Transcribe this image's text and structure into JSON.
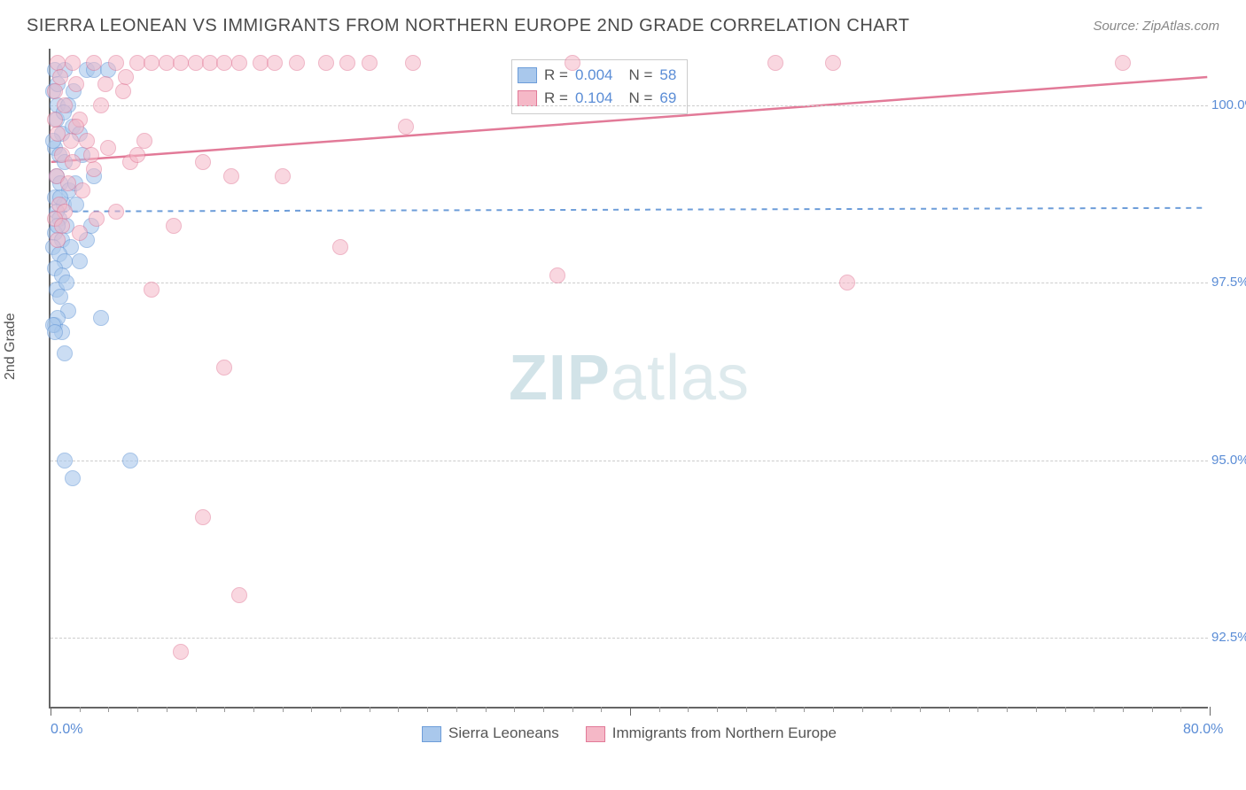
{
  "title": "SIERRA LEONEAN VS IMMIGRANTS FROM NORTHERN EUROPE 2ND GRADE CORRELATION CHART",
  "source": "Source: ZipAtlas.com",
  "ylabel": "2nd Grade",
  "watermark_bold": "ZIP",
  "watermark_light": "atlas",
  "chart": {
    "type": "scatter",
    "xlim": [
      0,
      80
    ],
    "ylim": [
      91.5,
      100.8
    ],
    "yticks": [
      {
        "v": 100.0,
        "label": "100.0%"
      },
      {
        "v": 97.5,
        "label": "97.5%"
      },
      {
        "v": 95.0,
        "label": "95.0%"
      },
      {
        "v": 92.5,
        "label": "92.5%"
      }
    ],
    "xticks_major": [
      0,
      40,
      80
    ],
    "xticks_minor": [
      2,
      4,
      6,
      8,
      10,
      12,
      14,
      16,
      18,
      20,
      22,
      24,
      26,
      28,
      30,
      32,
      34,
      36,
      38,
      42,
      44,
      46,
      48,
      50,
      52,
      54,
      56,
      58,
      60,
      62,
      64,
      66,
      68,
      70,
      72,
      74,
      76,
      78
    ],
    "xlabels": [
      {
        "v": 0,
        "label": "0.0%"
      },
      {
        "v": 80,
        "label": "80.0%"
      }
    ],
    "series": [
      {
        "name": "Sierra Leoneans",
        "fill": "#a9c8ec",
        "stroke": "#6d9dd9",
        "opacity": 0.6,
        "r_value": "0.004",
        "n_value": "58",
        "trend": {
          "y1": 98.5,
          "y2": 98.55,
          "dash": "6,6",
          "color": "#6d9dd9",
          "width": 2
        },
        "points": [
          [
            0.3,
            100.5
          ],
          [
            1.0,
            100.5
          ],
          [
            2.5,
            100.5
          ],
          [
            3.0,
            100.5
          ],
          [
            0.2,
            100.2
          ],
          [
            0.5,
            100.0
          ],
          [
            1.2,
            100.0
          ],
          [
            0.4,
            99.8
          ],
          [
            0.8,
            99.6
          ],
          [
            1.5,
            99.7
          ],
          [
            2.0,
            99.6
          ],
          [
            0.3,
            99.4
          ],
          [
            0.6,
            99.3
          ],
          [
            1.0,
            99.2
          ],
          [
            0.4,
            99.0
          ],
          [
            0.7,
            98.9
          ],
          [
            1.3,
            98.8
          ],
          [
            0.3,
            98.7
          ],
          [
            0.9,
            98.6
          ],
          [
            1.8,
            98.6
          ],
          [
            0.4,
            98.5
          ],
          [
            0.6,
            98.4
          ],
          [
            1.1,
            98.3
          ],
          [
            0.3,
            98.2
          ],
          [
            0.8,
            98.1
          ],
          [
            1.4,
            98.0
          ],
          [
            0.5,
            98.3
          ],
          [
            0.2,
            98.0
          ],
          [
            0.6,
            97.9
          ],
          [
            1.0,
            97.8
          ],
          [
            0.3,
            97.7
          ],
          [
            0.8,
            97.6
          ],
          [
            0.4,
            97.4
          ],
          [
            0.7,
            97.3
          ],
          [
            1.2,
            97.1
          ],
          [
            0.3,
            96.9
          ],
          [
            0.8,
            96.8
          ],
          [
            2.0,
            97.8
          ],
          [
            0.5,
            97.0
          ],
          [
            0.2,
            96.9
          ],
          [
            1.0,
            96.5
          ],
          [
            3.5,
            97.0
          ],
          [
            0.3,
            96.8
          ],
          [
            2.5,
            98.1
          ],
          [
            1.0,
            95.0
          ],
          [
            5.5,
            95.0
          ],
          [
            1.5,
            94.75
          ],
          [
            3.0,
            99.0
          ],
          [
            4.0,
            100.5
          ],
          [
            2.2,
            99.3
          ],
          [
            1.7,
            98.9
          ],
          [
            2.8,
            98.3
          ],
          [
            0.2,
            99.5
          ],
          [
            0.9,
            99.9
          ],
          [
            1.6,
            100.2
          ],
          [
            0.5,
            100.3
          ],
          [
            1.1,
            97.5
          ],
          [
            0.7,
            98.7
          ]
        ]
      },
      {
        "name": "Immigrants from Northern Europe",
        "fill": "#f5b8c7",
        "stroke": "#e27a98",
        "opacity": 0.55,
        "r_value": "0.104",
        "n_value": "69",
        "trend": {
          "y1": 99.2,
          "y2": 100.4,
          "dash": "none",
          "color": "#e27a98",
          "width": 2.5
        },
        "points": [
          [
            0.5,
            100.6
          ],
          [
            1.5,
            100.6
          ],
          [
            3.0,
            100.6
          ],
          [
            4.5,
            100.6
          ],
          [
            6.0,
            100.6
          ],
          [
            7.0,
            100.6
          ],
          [
            8.0,
            100.6
          ],
          [
            9.0,
            100.6
          ],
          [
            10.0,
            100.6
          ],
          [
            11.0,
            100.6
          ],
          [
            12.0,
            100.6
          ],
          [
            13.0,
            100.6
          ],
          [
            14.5,
            100.6
          ],
          [
            15.5,
            100.6
          ],
          [
            17.0,
            100.6
          ],
          [
            19.0,
            100.6
          ],
          [
            20.5,
            100.6
          ],
          [
            22.0,
            100.6
          ],
          [
            25.0,
            100.6
          ],
          [
            36.0,
            100.6
          ],
          [
            50.0,
            100.6
          ],
          [
            54.0,
            100.6
          ],
          [
            74.0,
            100.6
          ],
          [
            0.3,
            100.2
          ],
          [
            1.0,
            100.0
          ],
          [
            2.0,
            99.8
          ],
          [
            3.5,
            100.0
          ],
          [
            5.0,
            100.2
          ],
          [
            0.5,
            99.6
          ],
          [
            1.8,
            99.7
          ],
          [
            2.5,
            99.5
          ],
          [
            4.0,
            99.4
          ],
          [
            6.5,
            99.5
          ],
          [
            0.8,
            99.3
          ],
          [
            1.5,
            99.2
          ],
          [
            3.0,
            99.1
          ],
          [
            5.5,
            99.2
          ],
          [
            24.5,
            99.7
          ],
          [
            0.4,
            99.0
          ],
          [
            1.2,
            98.9
          ],
          [
            2.2,
            98.8
          ],
          [
            10.5,
            99.2
          ],
          [
            0.6,
            98.6
          ],
          [
            1.0,
            98.5
          ],
          [
            0.3,
            98.4
          ],
          [
            0.8,
            98.3
          ],
          [
            3.2,
            98.4
          ],
          [
            16.0,
            99.0
          ],
          [
            0.5,
            98.1
          ],
          [
            12.5,
            99.0
          ],
          [
            20.0,
            98.0
          ],
          [
            7.0,
            97.4
          ],
          [
            0.3,
            99.8
          ],
          [
            2.8,
            99.3
          ],
          [
            4.5,
            98.5
          ],
          [
            35.0,
            97.6
          ],
          [
            10.5,
            94.2
          ],
          [
            13.0,
            93.1
          ],
          [
            55.0,
            97.5
          ],
          [
            9.0,
            92.3
          ],
          [
            12.0,
            96.3
          ],
          [
            8.5,
            98.3
          ],
          [
            6.0,
            99.3
          ],
          [
            1.8,
            100.3
          ],
          [
            3.8,
            100.3
          ],
          [
            2.0,
            98.2
          ],
          [
            1.4,
            99.5
          ],
          [
            0.7,
            100.4
          ],
          [
            5.2,
            100.4
          ]
        ]
      }
    ]
  },
  "legend_bottom": [
    {
      "label": "Sierra Leoneans",
      "fill": "#a9c8ec",
      "stroke": "#6d9dd9"
    },
    {
      "label": "Immigrants from Northern Europe",
      "fill": "#f5b8c7",
      "stroke": "#e27a98"
    }
  ]
}
